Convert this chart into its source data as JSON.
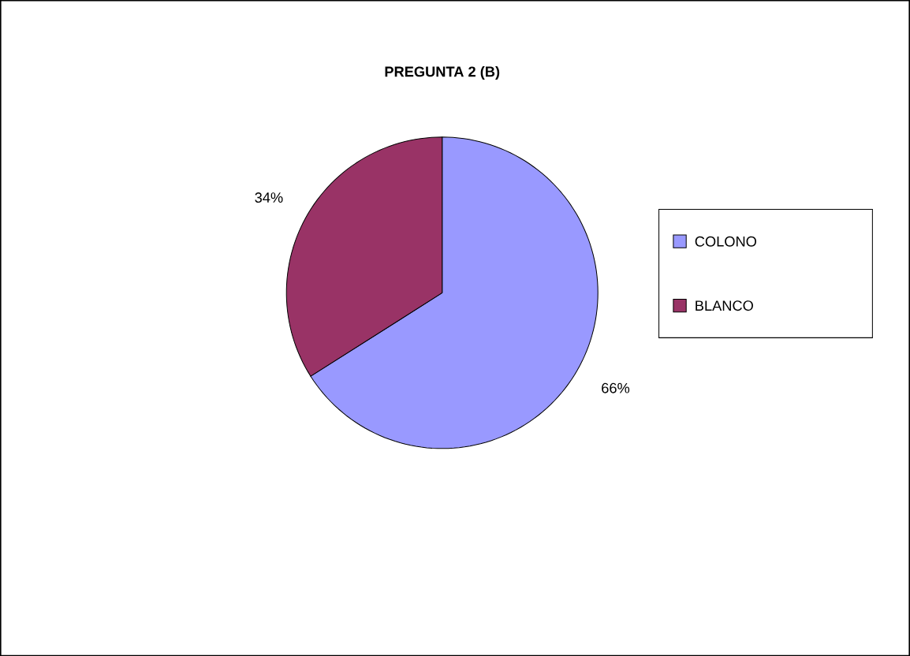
{
  "chart_data": {
    "type": "pie",
    "title": "PREGUNTA 2 (B)",
    "categories": [
      "COLONO",
      "BLANCO"
    ],
    "values": [
      66,
      34
    ],
    "value_labels": [
      "66%",
      "34%"
    ],
    "colors": [
      "#9999ff",
      "#993366"
    ],
    "legend": "right"
  }
}
